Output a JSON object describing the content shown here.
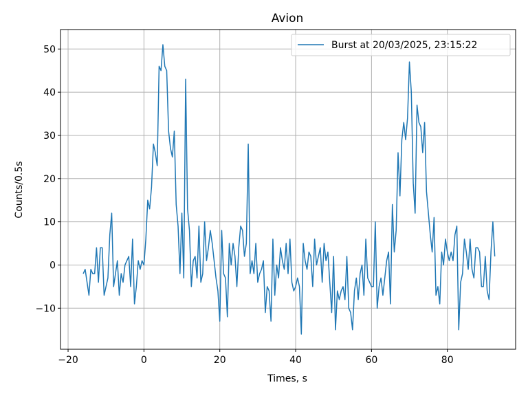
{
  "chart_data": {
    "type": "line",
    "title": "Avion",
    "xlabel": "Times, s",
    "ylabel": "Counts/0.5s",
    "xlim": [
      -22,
      98
    ],
    "ylim": [
      -19.5,
      54.5
    ],
    "xticks": [
      -20,
      0,
      20,
      40,
      60,
      80
    ],
    "yticks": [
      -10,
      0,
      10,
      20,
      30,
      40,
      50
    ],
    "xtick_labels": [
      "−20",
      "0",
      "20",
      "40",
      "60",
      "80"
    ],
    "ytick_labels": [
      "−10",
      "0",
      "10",
      "20",
      "30",
      "40",
      "50"
    ],
    "grid": true,
    "legend": "top-right",
    "line_color": "#1f77b4",
    "series": [
      {
        "name": "Burst at 20/03/2025, 23:15:22",
        "x_start": -16,
        "x_step": 0.5,
        "values": [
          -2,
          -1,
          -4,
          -7,
          -1,
          -2,
          -2,
          4,
          -4,
          4,
          4,
          -7,
          -5,
          -3,
          7,
          12,
          -5,
          -2,
          1,
          -7,
          -2,
          -4,
          0,
          1,
          2,
          -5,
          6,
          -9,
          -5,
          1,
          -1,
          1,
          0,
          6,
          15,
          13,
          18,
          28,
          26,
          23,
          46,
          45,
          51,
          46,
          45,
          31,
          27,
          25,
          31,
          14,
          9,
          -2,
          12,
          -3,
          43,
          13,
          8,
          -5,
          1,
          2,
          -3,
          9,
          -4,
          -2,
          10,
          1,
          4,
          8,
          5,
          1,
          -3,
          -6,
          -13,
          8,
          -2,
          -3,
          -12,
          5,
          0,
          5,
          2,
          -5,
          4,
          9,
          8,
          2,
          5,
          28,
          -2,
          1,
          -2,
          5,
          -4,
          -2,
          -1,
          1,
          -11,
          -5,
          -6,
          -13,
          6,
          -7,
          0,
          -3,
          4,
          1,
          -1,
          5,
          -2,
          6,
          -4,
          -6,
          -5,
          -3,
          -5,
          -16,
          5,
          1,
          -1,
          3,
          2,
          -5,
          6,
          0,
          2,
          4,
          -4,
          5,
          1,
          3,
          -4,
          -11,
          2,
          -15,
          -6,
          -8,
          -6,
          -5,
          -8,
          2,
          -10,
          -11,
          -15,
          -6,
          -3,
          -8,
          -2,
          0,
          -7,
          6,
          -3,
          -4,
          -5,
          -5,
          10,
          -10,
          -5,
          -3,
          -7,
          -3,
          1,
          3,
          -9,
          14,
          3,
          8,
          26,
          16,
          29,
          33,
          29,
          34,
          47,
          40,
          19,
          12,
          37,
          33,
          32,
          26,
          33,
          17,
          12,
          7,
          3,
          11,
          -7,
          -5,
          -9,
          3,
          0,
          6,
          3,
          1,
          3,
          1,
          7,
          9,
          -15,
          -4,
          -2,
          6,
          3,
          -1,
          6,
          -1,
          -3,
          4,
          4,
          3,
          -5,
          -5,
          2,
          -6,
          -8,
          3,
          10,
          2
        ]
      }
    ]
  }
}
